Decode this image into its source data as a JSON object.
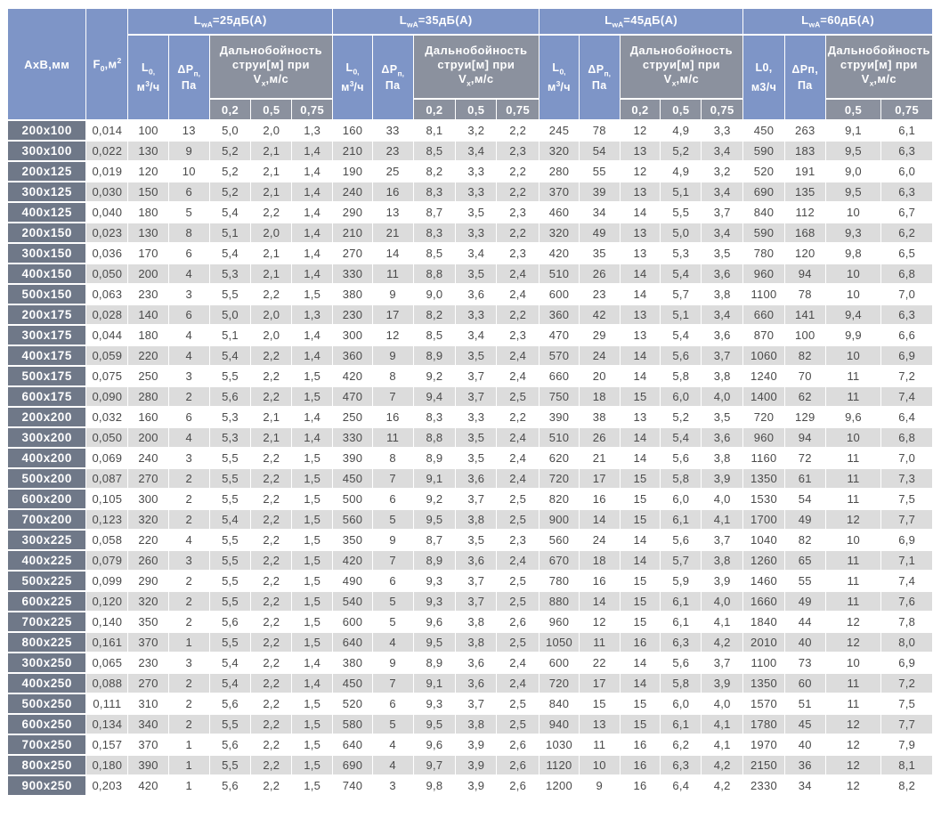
{
  "header": {
    "axb_label": "АхВ,мм",
    "f0": {
      "base": "F",
      "sub": "0",
      "mid": ",м",
      "sup": "2"
    },
    "groups": [
      {
        "title_base": "L",
        "title_sub": "wA",
        "title_rest": "=25дБ(А)",
        "flow": {
          "base": "L",
          "base_sub": "0,",
          "unit_pre": "м",
          "unit_sup": "3",
          "unit_post": "/ч"
        },
        "pressure": {
          "base": "ΔP",
          "base_sub": "п,",
          "unit": "Па"
        },
        "range": {
          "line1": "Дальнобойность",
          "line2": "струи[м] при",
          "v_base": "V",
          "v_sub": "x",
          "v_rest": ",м/с"
        },
        "velocities": [
          "0,2",
          "0,5",
          "0,75"
        ]
      },
      {
        "title_base": "L",
        "title_sub": "wA",
        "title_rest": "=35дБ(А)",
        "flow": {
          "base": "L",
          "base_sub": "0,",
          "unit_pre": "м",
          "unit_sup": "3",
          "unit_post": "/ч"
        },
        "pressure": {
          "base": "ΔP",
          "base_sub": "п,",
          "unit": "Па"
        },
        "range": {
          "line1": "Дальнобойность",
          "line2": "струи[м] при",
          "v_base": "V",
          "v_sub": "x",
          "v_rest": ",м/с"
        },
        "velocities": [
          "0,2",
          "0,5",
          "0,75"
        ]
      },
      {
        "title_base": "L",
        "title_sub": "wA",
        "title_rest": "=45дБ(А)",
        "flow": {
          "base": "L",
          "base_sub": "0,",
          "unit_pre": "м",
          "unit_sup": "3",
          "unit_post": "/ч"
        },
        "pressure": {
          "base": "ΔP",
          "base_sub": "п,",
          "unit": "Па"
        },
        "range": {
          "line1": "Дальнобойность",
          "line2": "струи[м] при",
          "v_base": "V",
          "v_sub": "x",
          "v_rest": ",м/с"
        },
        "velocities": [
          "0,2",
          "0,5",
          "0,75"
        ]
      },
      {
        "title_base": "L",
        "title_sub": "wA",
        "title_rest": "=60дБ(А)",
        "flow": {
          "base": "L0,",
          "base_sub": "",
          "unit_pre": "м3/ч",
          "unit_sup": "",
          "unit_post": ""
        },
        "pressure": {
          "base": "ΔPп,",
          "base_sub": "",
          "unit": "Па"
        },
        "range": {
          "line1": "Дальнобойность",
          "line2": "струи[м] при",
          "v_base": "V",
          "v_sub": "x",
          "v_rest": ",м/с"
        },
        "velocities": [
          "0,5",
          "0,75"
        ]
      }
    ]
  },
  "colors": {
    "header_blue": "#7e95c7",
    "header_gray": "#8b919e",
    "row_label_slate": "#6f7888",
    "row_alt_gray": "#dcdcdc",
    "data_text": "#4a4a4a"
  },
  "rows": [
    [
      "200x100",
      "0,014",
      "100",
      "13",
      "5,0",
      "2,0",
      "1,3",
      "160",
      "33",
      "8,1",
      "3,2",
      "2,2",
      "245",
      "78",
      "12",
      "4,9",
      "3,3",
      "450",
      "263",
      "9,1",
      "6,1"
    ],
    [
      "300x100",
      "0,022",
      "130",
      "9",
      "5,2",
      "2,1",
      "1,4",
      "210",
      "23",
      "8,5",
      "3,4",
      "2,3",
      "320",
      "54",
      "13",
      "5,2",
      "3,4",
      "590",
      "183",
      "9,5",
      "6,3"
    ],
    [
      "200x125",
      "0,019",
      "120",
      "10",
      "5,2",
      "2,1",
      "1,4",
      "190",
      "25",
      "8,2",
      "3,3",
      "2,2",
      "280",
      "55",
      "12",
      "4,9",
      "3,2",
      "520",
      "191",
      "9,0",
      "6,0"
    ],
    [
      "300x125",
      "0,030",
      "150",
      "6",
      "5,2",
      "2,1",
      "1,4",
      "240",
      "16",
      "8,3",
      "3,3",
      "2,2",
      "370",
      "39",
      "13",
      "5,1",
      "3,4",
      "690",
      "135",
      "9,5",
      "6,3"
    ],
    [
      "400x125",
      "0,040",
      "180",
      "5",
      "5,4",
      "2,2",
      "1,4",
      "290",
      "13",
      "8,7",
      "3,5",
      "2,3",
      "460",
      "34",
      "14",
      "5,5",
      "3,7",
      "840",
      "112",
      "10",
      "6,7"
    ],
    [
      "200x150",
      "0,023",
      "130",
      "8",
      "5,1",
      "2,0",
      "1,4",
      "210",
      "21",
      "8,3",
      "3,3",
      "2,2",
      "320",
      "49",
      "13",
      "5,0",
      "3,4",
      "590",
      "168",
      "9,3",
      "6,2"
    ],
    [
      "300x150",
      "0,036",
      "170",
      "6",
      "5,4",
      "2,1",
      "1,4",
      "270",
      "14",
      "8,5",
      "3,4",
      "2,3",
      "420",
      "35",
      "13",
      "5,3",
      "3,5",
      "780",
      "120",
      "9,8",
      "6,5"
    ],
    [
      "400x150",
      "0,050",
      "200",
      "4",
      "5,3",
      "2,1",
      "1,4",
      "330",
      "11",
      "8,8",
      "3,5",
      "2,4",
      "510",
      "26",
      "14",
      "5,4",
      "3,6",
      "960",
      "94",
      "10",
      "6,8"
    ],
    [
      "500x150",
      "0,063",
      "230",
      "3",
      "5,5",
      "2,2",
      "1,5",
      "380",
      "9",
      "9,0",
      "3,6",
      "2,4",
      "600",
      "23",
      "14",
      "5,7",
      "3,8",
      "1100",
      "78",
      "10",
      "7,0"
    ],
    [
      "200x175",
      "0,028",
      "140",
      "6",
      "5,0",
      "2,0",
      "1,3",
      "230",
      "17",
      "8,2",
      "3,3",
      "2,2",
      "360",
      "42",
      "13",
      "5,1",
      "3,4",
      "660",
      "141",
      "9,4",
      "6,3"
    ],
    [
      "300x175",
      "0,044",
      "180",
      "4",
      "5,1",
      "2,0",
      "1,4",
      "300",
      "12",
      "8,5",
      "3,4",
      "2,3",
      "470",
      "29",
      "13",
      "5,4",
      "3,6",
      "870",
      "100",
      "9,9",
      "6,6"
    ],
    [
      "400x175",
      "0,059",
      "220",
      "4",
      "5,4",
      "2,2",
      "1,4",
      "360",
      "9",
      "8,9",
      "3,5",
      "2,4",
      "570",
      "24",
      "14",
      "5,6",
      "3,7",
      "1060",
      "82",
      "10",
      "6,9"
    ],
    [
      "500x175",
      "0,075",
      "250",
      "3",
      "5,5",
      "2,2",
      "1,5",
      "420",
      "8",
      "9,2",
      "3,7",
      "2,4",
      "660",
      "20",
      "14",
      "5,8",
      "3,8",
      "1240",
      "70",
      "11",
      "7,2"
    ],
    [
      "600x175",
      "0,090",
      "280",
      "2",
      "5,6",
      "2,2",
      "1,5",
      "470",
      "7",
      "9,4",
      "3,7",
      "2,5",
      "750",
      "18",
      "15",
      "6,0",
      "4,0",
      "1400",
      "62",
      "11",
      "7,4"
    ],
    [
      "200x200",
      "0,032",
      "160",
      "6",
      "5,3",
      "2,1",
      "1,4",
      "250",
      "16",
      "8,3",
      "3,3",
      "2,2",
      "390",
      "38",
      "13",
      "5,2",
      "3,5",
      "720",
      "129",
      "9,6",
      "6,4"
    ],
    [
      "300x200",
      "0,050",
      "200",
      "4",
      "5,3",
      "2,1",
      "1,4",
      "330",
      "11",
      "8,8",
      "3,5",
      "2,4",
      "510",
      "26",
      "14",
      "5,4",
      "3,6",
      "960",
      "94",
      "10",
      "6,8"
    ],
    [
      "400x200",
      "0,069",
      "240",
      "3",
      "5,5",
      "2,2",
      "1,5",
      "390",
      "8",
      "8,9",
      "3,5",
      "2,4",
      "620",
      "21",
      "14",
      "5,6",
      "3,8",
      "1160",
      "72",
      "11",
      "7,0"
    ],
    [
      "500x200",
      "0,087",
      "270",
      "2",
      "5,5",
      "2,2",
      "1,5",
      "450",
      "7",
      "9,1",
      "3,6",
      "2,4",
      "720",
      "17",
      "15",
      "5,8",
      "3,9",
      "1350",
      "61",
      "11",
      "7,3"
    ],
    [
      "600x200",
      "0,105",
      "300",
      "2",
      "5,5",
      "2,2",
      "1,5",
      "500",
      "6",
      "9,2",
      "3,7",
      "2,5",
      "820",
      "16",
      "15",
      "6,0",
      "4,0",
      "1530",
      "54",
      "11",
      "7,5"
    ],
    [
      "700x200",
      "0,123",
      "320",
      "2",
      "5,4",
      "2,2",
      "1,5",
      "560",
      "5",
      "9,5",
      "3,8",
      "2,5",
      "900",
      "14",
      "15",
      "6,1",
      "4,1",
      "1700",
      "49",
      "12",
      "7,7"
    ],
    [
      "300x225",
      "0,058",
      "220",
      "4",
      "5,5",
      "2,2",
      "1,5",
      "350",
      "9",
      "8,7",
      "3,5",
      "2,3",
      "560",
      "24",
      "14",
      "5,6",
      "3,7",
      "1040",
      "82",
      "10",
      "6,9"
    ],
    [
      "400x225",
      "0,079",
      "260",
      "3",
      "5,5",
      "2,2",
      "1,5",
      "420",
      "7",
      "8,9",
      "3,6",
      "2,4",
      "670",
      "18",
      "14",
      "5,7",
      "3,8",
      "1260",
      "65",
      "11",
      "7,1"
    ],
    [
      "500x225",
      "0,099",
      "290",
      "2",
      "5,5",
      "2,2",
      "1,5",
      "490",
      "6",
      "9,3",
      "3,7",
      "2,5",
      "780",
      "16",
      "15",
      "5,9",
      "3,9",
      "1460",
      "55",
      "11",
      "7,4"
    ],
    [
      "600x225",
      "0,120",
      "320",
      "2",
      "5,5",
      "2,2",
      "1,5",
      "540",
      "5",
      "9,3",
      "3,7",
      "2,5",
      "880",
      "14",
      "15",
      "6,1",
      "4,0",
      "1660",
      "49",
      "11",
      "7,6"
    ],
    [
      "700x225",
      "0,140",
      "350",
      "2",
      "5,6",
      "2,2",
      "1,5",
      "600",
      "5",
      "9,6",
      "3,8",
      "2,6",
      "960",
      "12",
      "15",
      "6,1",
      "4,1",
      "1840",
      "44",
      "12",
      "7,8"
    ],
    [
      "800x225",
      "0,161",
      "370",
      "1",
      "5,5",
      "2,2",
      "1,5",
      "640",
      "4",
      "9,5",
      "3,8",
      "2,5",
      "1050",
      "11",
      "16",
      "6,3",
      "4,2",
      "2010",
      "40",
      "12",
      "8,0"
    ],
    [
      "300x250",
      "0,065",
      "230",
      "3",
      "5,4",
      "2,2",
      "1,4",
      "380",
      "9",
      "8,9",
      "3,6",
      "2,4",
      "600",
      "22",
      "14",
      "5,6",
      "3,7",
      "1100",
      "73",
      "10",
      "6,9"
    ],
    [
      "400x250",
      "0,088",
      "270",
      "2",
      "5,4",
      "2,2",
      "1,4",
      "450",
      "7",
      "9,1",
      "3,6",
      "2,4",
      "720",
      "17",
      "14",
      "5,8",
      "3,9",
      "1350",
      "60",
      "11",
      "7,2"
    ],
    [
      "500x250",
      "0,111",
      "310",
      "2",
      "5,6",
      "2,2",
      "1,5",
      "520",
      "6",
      "9,3",
      "3,7",
      "2,5",
      "840",
      "15",
      "15",
      "6,0",
      "4,0",
      "1570",
      "51",
      "11",
      "7,5"
    ],
    [
      "600x250",
      "0,134",
      "340",
      "2",
      "5,5",
      "2,2",
      "1,5",
      "580",
      "5",
      "9,5",
      "3,8",
      "2,5",
      "940",
      "13",
      "15",
      "6,1",
      "4,1",
      "1780",
      "45",
      "12",
      "7,7"
    ],
    [
      "700x250",
      "0,157",
      "370",
      "1",
      "5,6",
      "2,2",
      "1,5",
      "640",
      "4",
      "9,6",
      "3,9",
      "2,6",
      "1030",
      "11",
      "16",
      "6,2",
      "4,1",
      "1970",
      "40",
      "12",
      "7,9"
    ],
    [
      "800x250",
      "0,180",
      "390",
      "1",
      "5,5",
      "2,2",
      "1,5",
      "690",
      "4",
      "9,7",
      "3,9",
      "2,6",
      "1120",
      "10",
      "16",
      "6,3",
      "4,2",
      "2150",
      "36",
      "12",
      "8,1"
    ],
    [
      "900x250",
      "0,203",
      "420",
      "1",
      "5,6",
      "2,2",
      "1,5",
      "740",
      "3",
      "9,8",
      "3,9",
      "2,6",
      "1200",
      "9",
      "16",
      "6,4",
      "4,2",
      "2330",
      "34",
      "12",
      "8,2"
    ]
  ]
}
